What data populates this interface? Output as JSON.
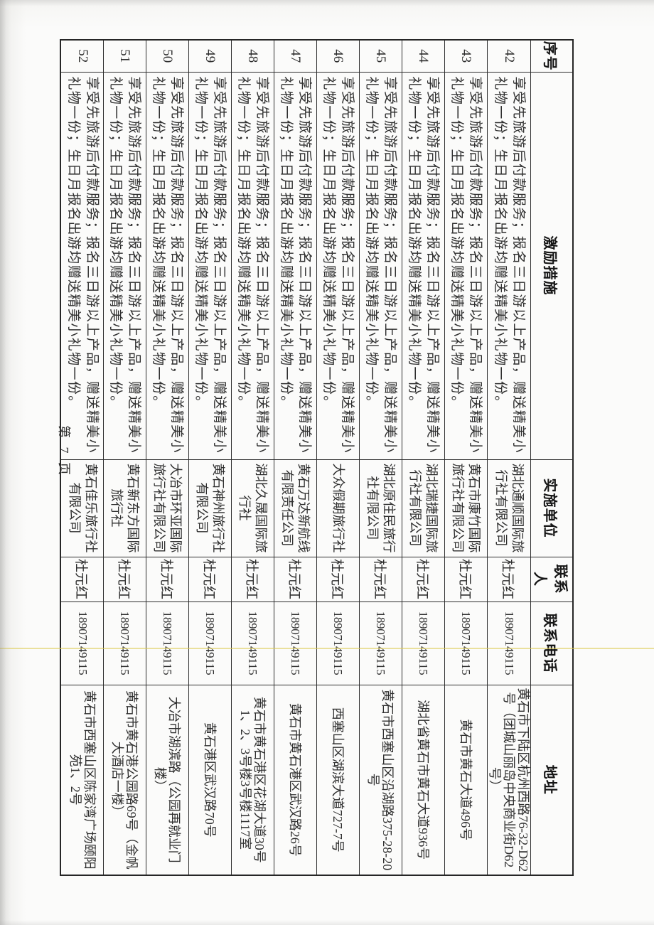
{
  "page": {
    "footer": "第 7 页"
  },
  "artifacts": {
    "yellow_line_color": "#ddcb4e"
  },
  "table": {
    "headers": {
      "no": "序号",
      "measure": "激励措施",
      "unit": "实施单位",
      "contact": "联系人",
      "phone": "联系电话",
      "address": "地址"
    },
    "rows": [
      {
        "no": "42",
        "measure": "享受先旅游后付款服务；报名三日游以上产品，赠送精美小礼物一份；生日月报名出游均赠送精美小礼物一份。",
        "unit": "湖北通顺国际旅行社有限公司",
        "contact": "杜元红",
        "phone": "18907149115",
        "address": "黄石市下陆区杭州西路76-32-D62号（团城山丽岛中央商业街D62号）"
      },
      {
        "no": "43",
        "measure": "享受先旅游后付款服务；报名三日游以上产品，赠送精美小礼物一份；生日月报名出游均赠送精美小礼物一份。",
        "unit": "黄石市康竹国际旅行社有限公司",
        "contact": "杜元红",
        "phone": "18907149115",
        "address": "黄石市黄石大道496号"
      },
      {
        "no": "44",
        "measure": "享受先旅游后付款服务；报名三日游以上产品，赠送精美小礼物一份；生日月报名出游均赠送精美小礼物一份。",
        "unit": "湖北瑞捷国际旅行社有限公司",
        "contact": "杜元红",
        "phone": "18907149115",
        "address": "湖北省黄石市黄石大道936号"
      },
      {
        "no": "45",
        "measure": "享受先旅游后付款服务；报名三日游以上产品，赠送精美小礼物一份；生日月报名出游均赠送精美小礼物一份。",
        "unit": "湖北原住民旅行社有限公司",
        "contact": "杜元红",
        "phone": "18907149115",
        "address": "黄石市西塞山区沿湖路375-28-20号"
      },
      {
        "no": "46",
        "measure": "享受先旅游后付款服务；报名三日游以上产品，赠送精美小礼物一份；生日月报名出游均赠送精美小礼物一份。",
        "unit": "大众假期旅行社",
        "contact": "杜元红",
        "phone": "18907149115",
        "address": "西塞山区湖滨大道727-7号"
      },
      {
        "no": "47",
        "measure": "享受先旅游后付款服务；报名三日游以上产品，赠送精美小礼物一份；生日月报名出游均赠送精美小礼物一份。",
        "unit": "黄石万达新航线有限责任公司",
        "contact": "杜元红",
        "phone": "18907149115",
        "address": "黄石市黄石港区武汉路26号"
      },
      {
        "no": "48",
        "measure": "享受先旅游后付款服务；报名三日游以上产品，赠送精美小礼物一份；生日月报名出游均赠送精美小礼物一份。",
        "unit": "湖北久晟国际旅行社",
        "contact": "杜元红",
        "phone": "18907149115",
        "address": "黄石市黄石港区花湖大道30号1、2、3号楼3号楼1117室"
      },
      {
        "no": "49",
        "measure": "享受先旅游后付款服务；报名三日游以上产品，赠送精美小礼物一份；生日月报名出游均赠送精美小礼物一份。",
        "unit": "黄石神州旅行社有限公司",
        "contact": "杜元红",
        "phone": "18907149115",
        "address": "黄石港区武汉路70号"
      },
      {
        "no": "50",
        "measure": "享受先旅游后付款服务；报名三日游以上产品，赠送精美小礼物一份；生日月报名出游均赠送精美小礼物一份。",
        "unit": "大冶市环亚国际旅行社有限公司",
        "contact": "杜元红",
        "phone": "18907149115",
        "address": "大冶市湖滨路（公园再就业门楼）"
      },
      {
        "no": "51",
        "measure": "享受先旅游后付款服务；报名三日游以上产品，赠送精美小礼物一份；生日月报名出游均赠送精美小礼物一份。",
        "unit": "黄石新东方国际旅行社",
        "contact": "杜元红",
        "phone": "18907149115",
        "address": "黄石市黄石港公园路69号（金帆大酒店一楼）"
      },
      {
        "no": "52",
        "measure": "享受先旅游后付款服务；报名三日游以上产品，赠送精美小礼物一份；生日月报名出游均赠送精美小礼物一份。",
        "unit": "黄石佳乐旅行社有限公司",
        "contact": "杜元红",
        "phone": "18907149115",
        "address": "黄石市西塞山区陈家湾广场颐阳苑1、2号"
      }
    ]
  }
}
